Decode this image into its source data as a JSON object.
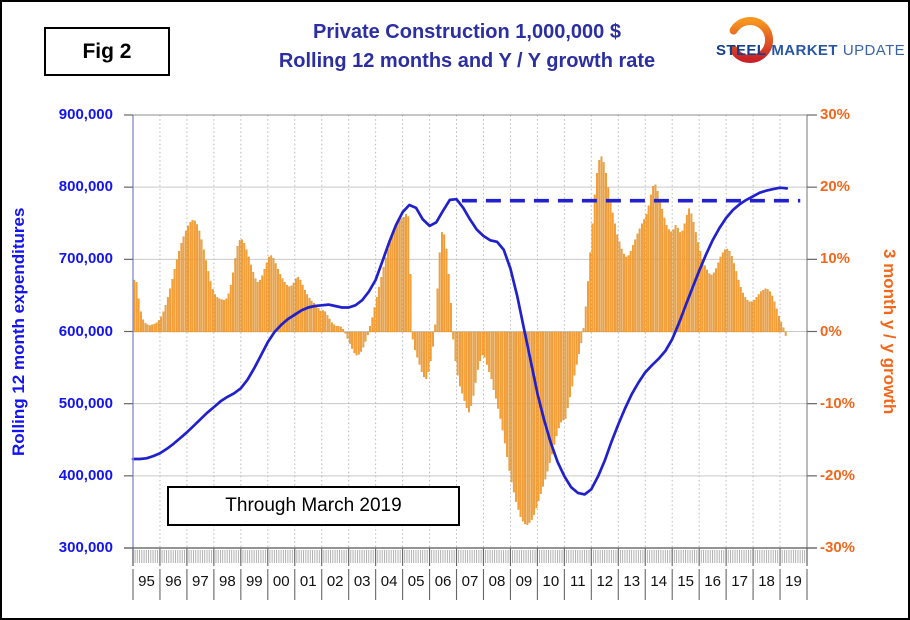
{
  "figure_label": "Fig 2",
  "title": {
    "line1": "Private Construction 1,000,000 $",
    "line2": "Rolling 12 months and Y / Y growth rate"
  },
  "logo": {
    "steel": "STEEL",
    "market": "MARKET",
    "update": "UPDATE"
  },
  "annotation_box": {
    "text": "Through March 2019"
  },
  "left_axis": {
    "title": "Rolling 12 month expenditures",
    "ticks": [
      "900,000",
      "800,000",
      "700,000",
      "600,000",
      "500,000",
      "400,000",
      "300,000"
    ],
    "min": 300000,
    "max": 900000
  },
  "right_axis": {
    "title": "3 month y / y growth",
    "ticks": [
      "30%",
      "20%",
      "10%",
      "0%",
      "-10%",
      "-20%",
      "-30%"
    ],
    "min": -30,
    "max": 30
  },
  "x_axis": {
    "years": [
      "95",
      "96",
      "97",
      "98",
      "99",
      "00",
      "01",
      "02",
      "03",
      "04",
      "05",
      "06",
      "07",
      "08",
      "09",
      "10",
      "11",
      "12",
      "13",
      "14",
      "15",
      "16",
      "17",
      "18",
      "19"
    ]
  },
  "colors": {
    "bar_fill": "#F7A13B",
    "bar_edge": "#DD8A1E",
    "line": "#2121CC",
    "dashed": "#2222CC",
    "title_text": "#2B2FA2",
    "left_axis_text": "#1414EE",
    "right_axis_text": "#F3671C",
    "year_text": "#111111",
    "grid": "#C9C9C9",
    "grid_dotted": "#B9B9B9",
    "spine_left": "#8A8FD6",
    "spine": "#8C8C8C",
    "axis_bottom": "#555555",
    "hatch": "#A8A8A8",
    "tick": "#666666",
    "logo_steel": "#143E8C",
    "logo_market": "#2A57A5",
    "logo_update": "#3A64A6",
    "logo_ring_top": "#F8961F",
    "logo_ring_bottom": "#C92127"
  },
  "chart_data": {
    "type": "combo bar+line",
    "title": "Private Construction 1,000,000 $ — Rolling 12 months and Y / Y growth rate",
    "x_range_years": [
      1995,
      2020
    ],
    "grid": "horizontal solid, vertical dotted per year",
    "bars": {
      "name": "3 month y / y growth",
      "axis": "right",
      "unit": "%",
      "ylim": [
        -30,
        30
      ],
      "frequency": "monthly",
      "start": "1995-01",
      "end": "2019-03",
      "values": [
        7.2,
        6.9,
        4.6,
        2.8,
        1.7,
        1.2,
        1.0,
        0.9,
        1.0,
        1.1,
        1.3,
        1.6,
        2.1,
        2.8,
        3.7,
        4.8,
        6.0,
        7.3,
        8.7,
        10.0,
        11.2,
        12.3,
        13.2,
        14.0,
        14.7,
        15.2,
        15.5,
        15.4,
        14.9,
        14.0,
        12.8,
        11.4,
        9.9,
        8.4,
        7.0,
        5.9,
        5.2,
        4.8,
        4.6,
        4.5,
        4.4,
        4.6,
        5.3,
        6.5,
        8.2,
        10.2,
        11.9,
        12.7,
        12.8,
        12.3,
        11.4,
        10.4,
        9.3,
        8.3,
        7.4,
        6.9,
        7.2,
        7.8,
        8.7,
        9.6,
        10.4,
        10.6,
        10.2,
        9.5,
        8.7,
        8.0,
        7.4,
        6.9,
        6.5,
        6.3,
        6.4,
        6.8,
        7.4,
        7.6,
        7.2,
        6.5,
        5.8,
        5.2,
        4.7,
        4.3,
        4.0,
        3.7,
        3.3,
        2.9,
        3.0,
        2.8,
        2.3,
        1.8,
        1.3,
        1.0,
        0.8,
        0.8,
        0.7,
        0.4,
        -0.2,
        -0.9,
        -1.6,
        -2.3,
        -2.9,
        -3.2,
        -3.1,
        -2.7,
        -2.1,
        -1.3,
        -0.4,
        0.8,
        2.0,
        3.4,
        4.8,
        6.2,
        7.6,
        9.0,
        10.3,
        11.5,
        12.5,
        13.4,
        14.2,
        14.9,
        15.4,
        15.7,
        15.9,
        16.3,
        16.0,
        8.0,
        -1.0,
        -2.5,
        -3.5,
        -4.5,
        -5.5,
        -6.2,
        -6.5,
        -5.5,
        -4.0,
        -2.0,
        1.0,
        6.0,
        11.0,
        13.8,
        13.5,
        11.5,
        8.0,
        4.0,
        -1.0,
        -4.0,
        -6.0,
        -7.5,
        -8.5,
        -9.5,
        -10.5,
        -11.1,
        -10.2,
        -8.8,
        -7.0,
        -5.2,
        -4.0,
        -3.2,
        -3.5,
        -4.5,
        -5.5,
        -6.5,
        -8.0,
        -9.2,
        -10.6,
        -12.0,
        -13.6,
        -15.4,
        -17.3,
        -19.2,
        -20.8,
        -22.2,
        -23.5,
        -24.6,
        -25.6,
        -26.2,
        -26.6,
        -26.7,
        -26.4,
        -26.0,
        -25.3,
        -24.4,
        -23.4,
        -22.4,
        -21.4,
        -20.4,
        -19.3,
        -18.1,
        -16.9,
        -15.6,
        -14.4,
        -13.3,
        -12.5,
        -12.2,
        -12.0,
        -10.5,
        -9.0,
        -7.5,
        -6.0,
        -4.5,
        -3.0,
        -1.5,
        0.5,
        3.5,
        7.0,
        11.0,
        15.0,
        19.0,
        22.0,
        23.8,
        24.3,
        23.5,
        22.0,
        20.0,
        18.0,
        16.5,
        15.0,
        13.5,
        12.5,
        11.5,
        10.8,
        10.4,
        10.6,
        11.2,
        12.0,
        12.8,
        13.6,
        14.3,
        15.0,
        15.6,
        16.3,
        17.5,
        19.0,
        20.2,
        20.4,
        19.5,
        18.2,
        17.0,
        15.8,
        14.8,
        14.2,
        13.9,
        14.2,
        14.8,
        14.4,
        13.8,
        14.0,
        15.0,
        16.2,
        17.1,
        16.4,
        15.2,
        13.8,
        12.4,
        11.2,
        10.1,
        9.2,
        8.6,
        8.1,
        7.9,
        8.2,
        8.8,
        9.6,
        10.4,
        11.0,
        11.4,
        11.5,
        11.2,
        10.5,
        9.5,
        8.4,
        7.2,
        6.2,
        5.4,
        4.8,
        4.4,
        4.2,
        4.2,
        4.4,
        4.8,
        5.2,
        5.6,
        5.8,
        6.0,
        5.9,
        5.6,
        5.0,
        4.2,
        3.2,
        2.2,
        1.4,
        0.6,
        -0.5
      ]
    },
    "line": {
      "name": "Rolling 12 month expenditures",
      "axis": "left",
      "unit": "1,000,000 $",
      "ylim": [
        300000,
        900000
      ],
      "frequency": "quarterly",
      "start": "1995.0",
      "step_years": 0.25,
      "end": "2019.25",
      "values": [
        424000,
        424000,
        425000,
        428000,
        432000,
        438000,
        445000,
        453000,
        461000,
        470000,
        479000,
        488000,
        496000,
        504000,
        510000,
        515000,
        522000,
        534000,
        550000,
        568000,
        586000,
        600000,
        610000,
        618000,
        624000,
        630000,
        634000,
        636000,
        637000,
        638000,
        636000,
        634000,
        634000,
        637000,
        644000,
        656000,
        672000,
        698000,
        724000,
        748000,
        766000,
        776000,
        772000,
        756000,
        747000,
        752000,
        768000,
        783000,
        784000,
        772000,
        756000,
        742000,
        733000,
        727000,
        725000,
        714000,
        688000,
        650000,
        605000,
        560000,
        515000,
        478000,
        446000,
        420000,
        400000,
        385000,
        377000,
        375000,
        382000,
        400000,
        422000,
        448000,
        472000,
        494000,
        514000,
        530000,
        544000,
        554000,
        563000,
        574000,
        590000,
        612000,
        637000,
        661000,
        685000,
        707000,
        727000,
        744000,
        758000,
        769000,
        777000,
        783000,
        788000,
        793000,
        796000,
        798000,
        800000,
        799000
      ]
    },
    "dashed_reference_line": {
      "value": 782000,
      "axis": "left",
      "style": "dashed",
      "start_year": 2007.2,
      "end_year": 2019.75,
      "meaning": "prior (2006-07) peak level of rolling 12 month expenditures"
    }
  }
}
